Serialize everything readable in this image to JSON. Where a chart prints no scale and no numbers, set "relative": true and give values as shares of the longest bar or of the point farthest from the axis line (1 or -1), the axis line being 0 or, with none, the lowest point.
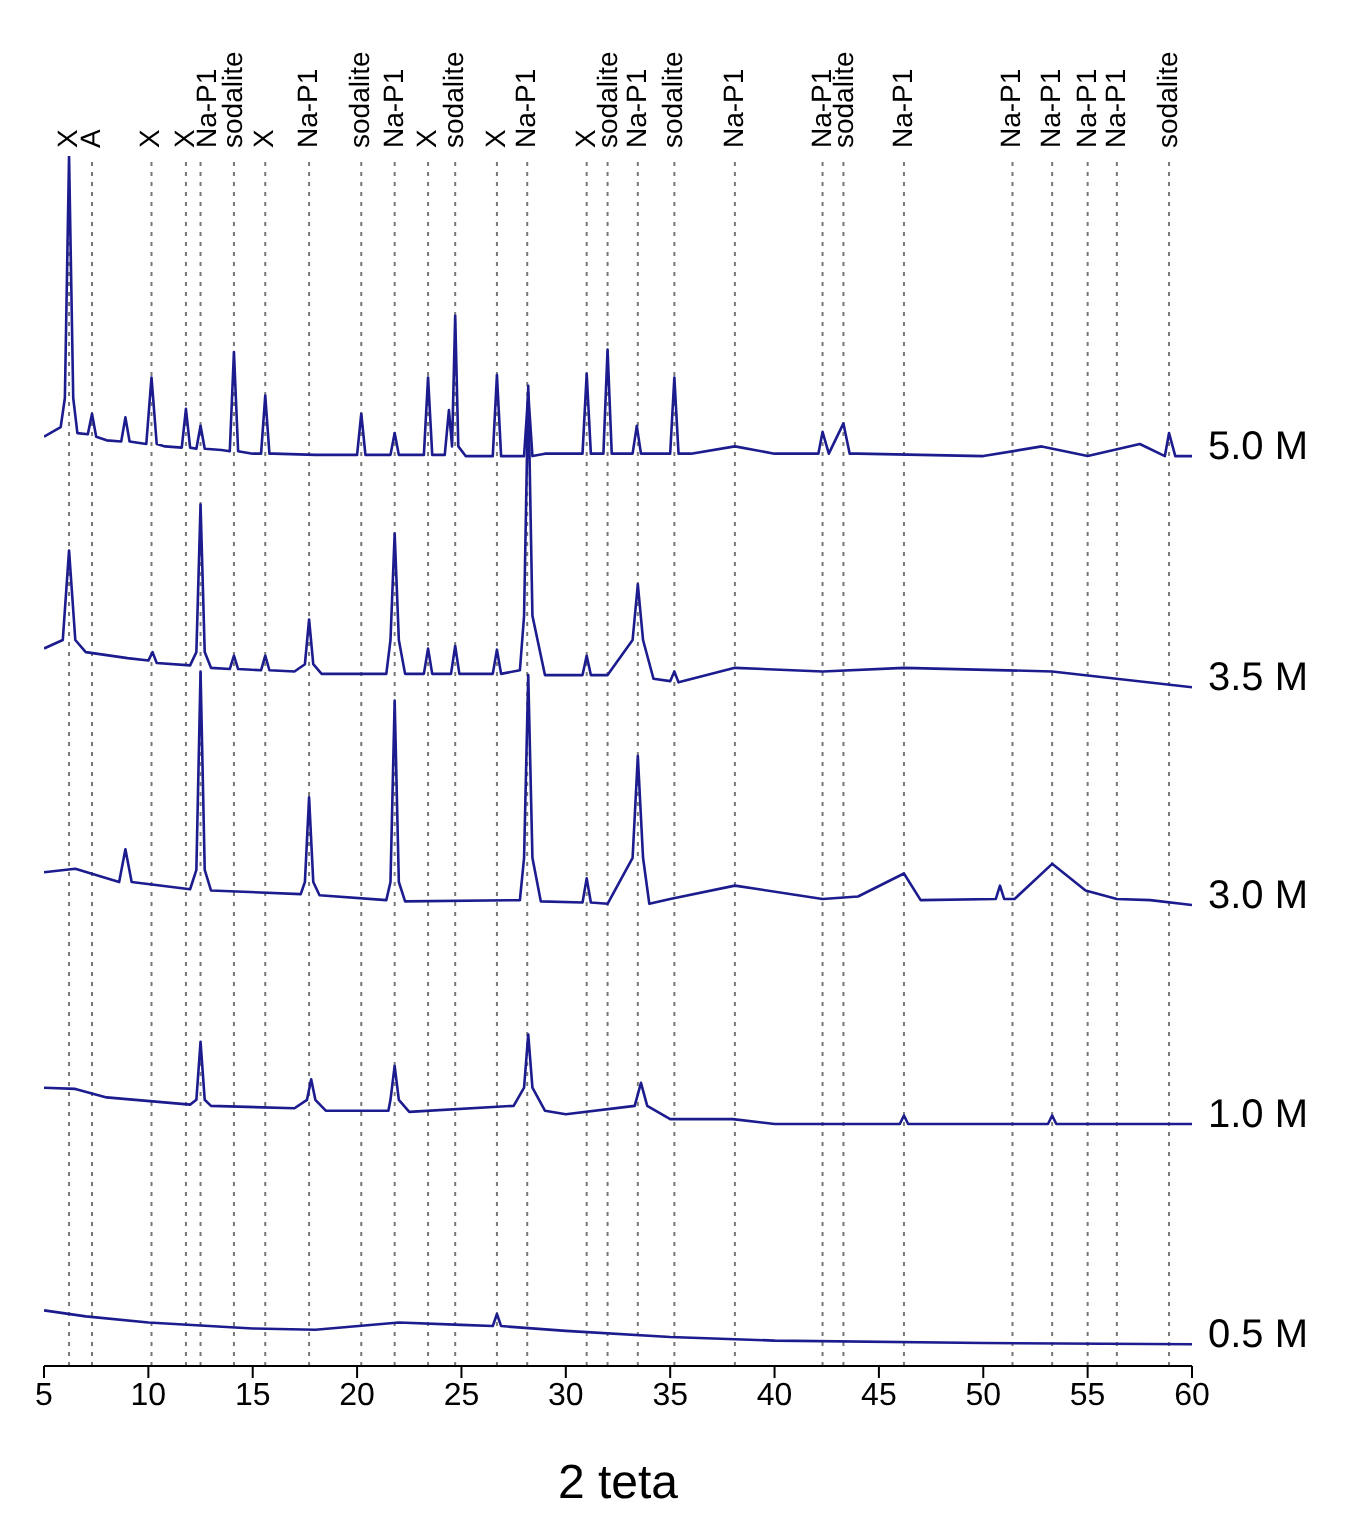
{
  "chart_data": {
    "type": "line",
    "xlabel": "2 teta",
    "relative": true,
    "xlim": [
      5,
      60
    ],
    "xticks": [
      5,
      10,
      15,
      20,
      25,
      30,
      35,
      40,
      45,
      50,
      55,
      60
    ],
    "marker": "none",
    "line_style": "solid",
    "series": [
      {
        "name": "5.0 M",
        "color": "#1c1c8f",
        "x": [
          5,
          5.8,
          6.0,
          6.2,
          6.4,
          6.6,
          7.1,
          7.3,
          7.5,
          8,
          8.7,
          8.9,
          9.1,
          9.9,
          10.15,
          10.4,
          10.8,
          11.6,
          11.8,
          12.0,
          12.3,
          12.5,
          12.7,
          13.5,
          13.9,
          14.1,
          14.3,
          15,
          15.4,
          15.6,
          15.8,
          16,
          18,
          20,
          20.2,
          20.4,
          21.6,
          21.8,
          22,
          23.2,
          23.4,
          23.6,
          24.2,
          24.4,
          24.55,
          24.7,
          24.85,
          25.2,
          26.5,
          26.7,
          26.9,
          28,
          28.2,
          28.4,
          29,
          30.8,
          31.0,
          31.2,
          31.8,
          32.0,
          32.2,
          33.2,
          33.4,
          33.6,
          35,
          35.2,
          35.4,
          36,
          38.1,
          40,
          42.1,
          42.3,
          42.6,
          43.3,
          43.6,
          44,
          50,
          52.8,
          55,
          57.5,
          58.7,
          58.9,
          59.2,
          60
        ],
        "values": [
          0.768,
          0.776,
          0.8,
          1.0,
          0.8,
          0.771,
          0.77,
          0.787,
          0.768,
          0.765,
          0.764,
          0.784,
          0.764,
          0.762,
          0.817,
          0.762,
          0.76,
          0.759,
          0.791,
          0.759,
          0.758,
          0.777,
          0.758,
          0.757,
          0.756,
          0.838,
          0.756,
          0.754,
          0.754,
          0.802,
          0.754,
          0.754,
          0.753,
          0.753,
          0.787,
          0.753,
          0.753,
          0.771,
          0.753,
          0.753,
          0.817,
          0.753,
          0.753,
          0.79,
          0.76,
          0.868,
          0.76,
          0.752,
          0.752,
          0.819,
          0.752,
          0.752,
          0.804,
          0.752,
          0.754,
          0.754,
          0.82,
          0.754,
          0.754,
          0.84,
          0.754,
          0.754,
          0.777,
          0.754,
          0.754,
          0.817,
          0.754,
          0.754,
          0.76,
          0.754,
          0.754,
          0.772,
          0.754,
          0.779,
          0.754,
          0.754,
          0.752,
          0.76,
          0.752,
          0.762,
          0.752,
          0.771,
          0.752,
          0.752
        ]
      },
      {
        "name": "3.5 M",
        "color": "#1c1c8f",
        "x": [
          5,
          5.9,
          6.2,
          6.5,
          7,
          9,
          10.0,
          10.2,
          10.4,
          12,
          12.3,
          12.5,
          12.7,
          13,
          13.9,
          14.1,
          14.3,
          15.4,
          15.6,
          15.8,
          17,
          17.5,
          17.7,
          17.9,
          18.3,
          21.4,
          21.6,
          21.8,
          22.0,
          22.3,
          23.2,
          23.4,
          23.6,
          24.5,
          24.7,
          24.9,
          26.5,
          26.7,
          26.9,
          27.8,
          28.0,
          28.2,
          28.4,
          29,
          30.8,
          31.0,
          31.2,
          32,
          33.2,
          33.45,
          33.7,
          34.2,
          35,
          35.2,
          35.4,
          38.1,
          42.3,
          46.2,
          53.3,
          60
        ],
        "values": [
          0.593,
          0.6,
          0.674,
          0.6,
          0.59,
          0.585,
          0.583,
          0.59,
          0.581,
          0.579,
          0.59,
          0.712,
          0.59,
          0.577,
          0.576,
          0.587,
          0.576,
          0.575,
          0.587,
          0.575,
          0.574,
          0.58,
          0.617,
          0.58,
          0.572,
          0.572,
          0.6,
          0.688,
          0.6,
          0.572,
          0.572,
          0.593,
          0.572,
          0.572,
          0.595,
          0.572,
          0.572,
          0.592,
          0.572,
          0.575,
          0.62,
          0.81,
          0.62,
          0.571,
          0.571,
          0.587,
          0.571,
          0.571,
          0.6,
          0.646,
          0.6,
          0.568,
          0.566,
          0.574,
          0.565,
          0.577,
          0.574,
          0.577,
          0.574,
          0.561
        ]
      },
      {
        "name": "3.0 M",
        "color": "#1c1c8f",
        "x": [
          5,
          6.5,
          8.6,
          8.9,
          9.2,
          12,
          12.3,
          12.5,
          12.7,
          13,
          17.3,
          17.5,
          17.7,
          17.9,
          18.2,
          21.4,
          21.6,
          21.8,
          22.0,
          22.3,
          27.8,
          28.0,
          28.2,
          28.4,
          28.8,
          30.8,
          31.0,
          31.2,
          32,
          33.2,
          33.45,
          33.7,
          34,
          35,
          38.1,
          42.3,
          44,
          46.2,
          47,
          50.6,
          50.8,
          51.0,
          51.5,
          53.3,
          54.9,
          56.4,
          58,
          60
        ],
        "values": [
          0.408,
          0.411,
          0.4,
          0.427,
          0.4,
          0.394,
          0.41,
          0.574,
          0.41,
          0.393,
          0.39,
          0.4,
          0.47,
          0.4,
          0.389,
          0.385,
          0.4,
          0.55,
          0.4,
          0.384,
          0.385,
          0.42,
          0.571,
          0.42,
          0.384,
          0.383,
          0.403,
          0.383,
          0.382,
          0.42,
          0.504,
          0.42,
          0.382,
          0.386,
          0.397,
          0.386,
          0.388,
          0.407,
          0.385,
          0.386,
          0.397,
          0.386,
          0.386,
          0.415,
          0.393,
          0.386,
          0.385,
          0.381
        ]
      },
      {
        "name": "1.0 M",
        "color": "#1c1c8f",
        "x": [
          5,
          6.5,
          8,
          12,
          12.3,
          12.5,
          12.7,
          13,
          17,
          17.6,
          17.8,
          18.0,
          18.5,
          21.5,
          21.6,
          21.8,
          22.0,
          22.5,
          27.5,
          28.0,
          28.2,
          28.4,
          29,
          30,
          33.3,
          33.6,
          33.9,
          35,
          38,
          40,
          46.0,
          46.2,
          46.4,
          47,
          53.1,
          53.3,
          53.5,
          60
        ],
        "values": [
          0.23,
          0.229,
          0.222,
          0.216,
          0.22,
          0.268,
          0.22,
          0.215,
          0.213,
          0.22,
          0.237,
          0.22,
          0.211,
          0.211,
          0.22,
          0.248,
          0.22,
          0.21,
          0.215,
          0.23,
          0.274,
          0.23,
          0.211,
          0.208,
          0.215,
          0.234,
          0.215,
          0.204,
          0.204,
          0.2,
          0.2,
          0.207,
          0.2,
          0.2,
          0.2,
          0.207,
          0.2,
          0.2
        ]
      },
      {
        "name": "0.5 M",
        "color": "#1c1c8f",
        "x": [
          5,
          7,
          10,
          15,
          18,
          22,
          25,
          26.5,
          26.7,
          26.9,
          30,
          35,
          40,
          50,
          60
        ],
        "values": [
          0.046,
          0.041,
          0.036,
          0.031,
          0.03,
          0.036,
          0.034,
          0.033,
          0.043,
          0.033,
          0.029,
          0.024,
          0.021,
          0.019,
          0.018
        ]
      }
    ],
    "ref_lines": [
      {
        "axis": "x",
        "value": 6.2,
        "label": "X"
      },
      {
        "axis": "x",
        "value": 7.3,
        "label": "A"
      },
      {
        "axis": "x",
        "value": 10.15,
        "label": "X"
      },
      {
        "axis": "x",
        "value": 11.8,
        "label": "X"
      },
      {
        "axis": "x",
        "value": 12.5,
        "label": "Na-P1"
      },
      {
        "axis": "x",
        "value": 14.1,
        "label": "sodalite"
      },
      {
        "axis": "x",
        "value": 15.6,
        "label": "X"
      },
      {
        "axis": "x",
        "value": 17.7,
        "label": "Na-P1"
      },
      {
        "axis": "x",
        "value": 20.2,
        "label": "sodalite"
      },
      {
        "axis": "x",
        "value": 21.8,
        "label": "Na-P1"
      },
      {
        "axis": "x",
        "value": 23.4,
        "label": "X"
      },
      {
        "axis": "x",
        "value": 24.7,
        "label": "sodalite"
      },
      {
        "axis": "x",
        "value": 26.7,
        "label": "X"
      },
      {
        "axis": "x",
        "value": 28.15,
        "label": "Na-P1"
      },
      {
        "axis": "x",
        "value": 31.0,
        "label": "X"
      },
      {
        "axis": "x",
        "value": 32.0,
        "label": "sodalite"
      },
      {
        "axis": "x",
        "value": 33.45,
        "label": "Na-P1"
      },
      {
        "axis": "x",
        "value": 35.2,
        "label": "sodalite"
      },
      {
        "axis": "x",
        "value": 38.1,
        "label": "Na-P1"
      },
      {
        "axis": "x",
        "value": 42.3,
        "label": "Na-P1"
      },
      {
        "axis": "x",
        "value": 43.3,
        "label": "sodalite"
      },
      {
        "axis": "x",
        "value": 46.2,
        "label": "Na-P1"
      },
      {
        "axis": "x",
        "value": 51.4,
        "label": "Na-P1"
      },
      {
        "axis": "x",
        "value": 53.3,
        "label": "Na-P1"
      },
      {
        "axis": "x",
        "value": 55.0,
        "label": "Na-P1"
      },
      {
        "axis": "x",
        "value": 56.4,
        "label": "Na-P1"
      },
      {
        "axis": "x",
        "value": 58.9,
        "label": "sodalite"
      }
    ]
  }
}
